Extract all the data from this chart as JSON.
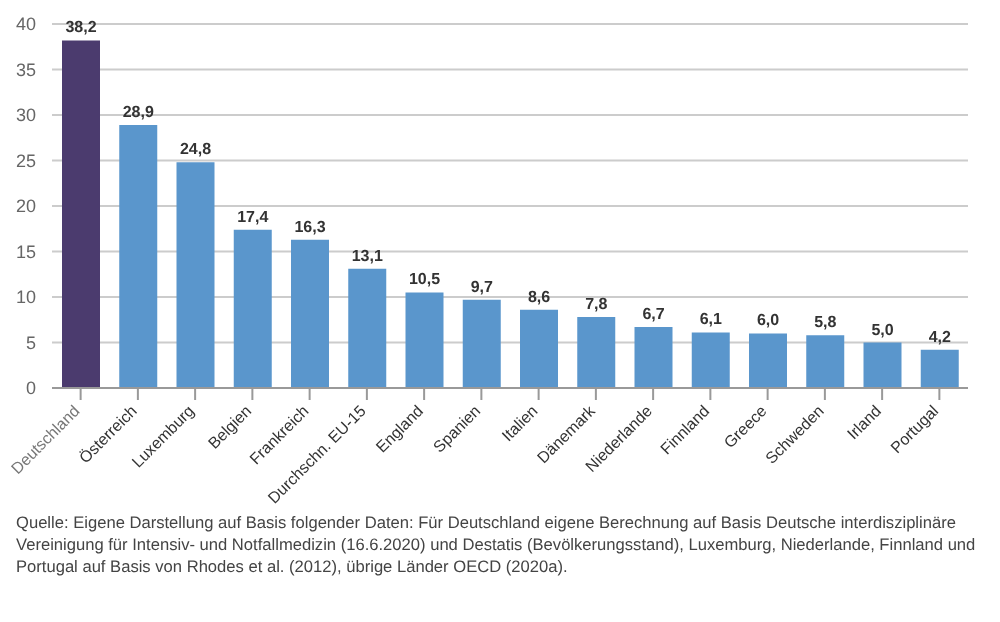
{
  "chart_data": {
    "type": "bar",
    "categories": [
      "Deutschland",
      "Österreich",
      "Luxemburg",
      "Belgien",
      "Frankreich",
      "Durchschn. EU-15",
      "England",
      "Spanien",
      "Italien",
      "Dänemark",
      "Niederlande",
      "Finnland",
      "Greece",
      "Schweden",
      "Irland",
      "Portugal"
    ],
    "values": [
      38.2,
      28.9,
      24.8,
      17.4,
      16.3,
      13.1,
      10.5,
      9.7,
      8.6,
      7.8,
      6.7,
      6.1,
      6.0,
      5.8,
      5.0,
      4.2
    ],
    "colors": [
      "#4b3b6e",
      "#5a96cc",
      "#5a96cc",
      "#5a96cc",
      "#5a96cc",
      "#5a96cc",
      "#5a96cc",
      "#5a96cc",
      "#5a96cc",
      "#5a96cc",
      "#5a96cc",
      "#5a96cc",
      "#5a96cc",
      "#5a96cc",
      "#5a96cc",
      "#5a96cc"
    ],
    "value_labels": [
      "38,2",
      "28,9",
      "24,8",
      "17,4",
      "16,3",
      "13,1",
      "10,5",
      "9,7",
      "8,6",
      "7,8",
      "6,7",
      "6,1",
      "6,0",
      "5,8",
      "5,0",
      "4,2"
    ],
    "ylim": [
      0,
      40
    ],
    "yticks": [
      0,
      5,
      10,
      15,
      20,
      25,
      30,
      35,
      40
    ],
    "grid": "y",
    "annotations": [
      "Quelle: Eigene Darstellung auf Basis folgender Daten: Für Deutschland eigene Berechnung auf Basis Deutsche interdisziplinäre Vereinigung für Intensiv- und Notfallmedizin (16.6.2020) und Destatis (Bevölkerungsstand), Luxemburg, Niederlande, Finnland und Portugal auf Basis von Rhodes et al. (2012), übrige Länder OECD (2020a)."
    ]
  }
}
